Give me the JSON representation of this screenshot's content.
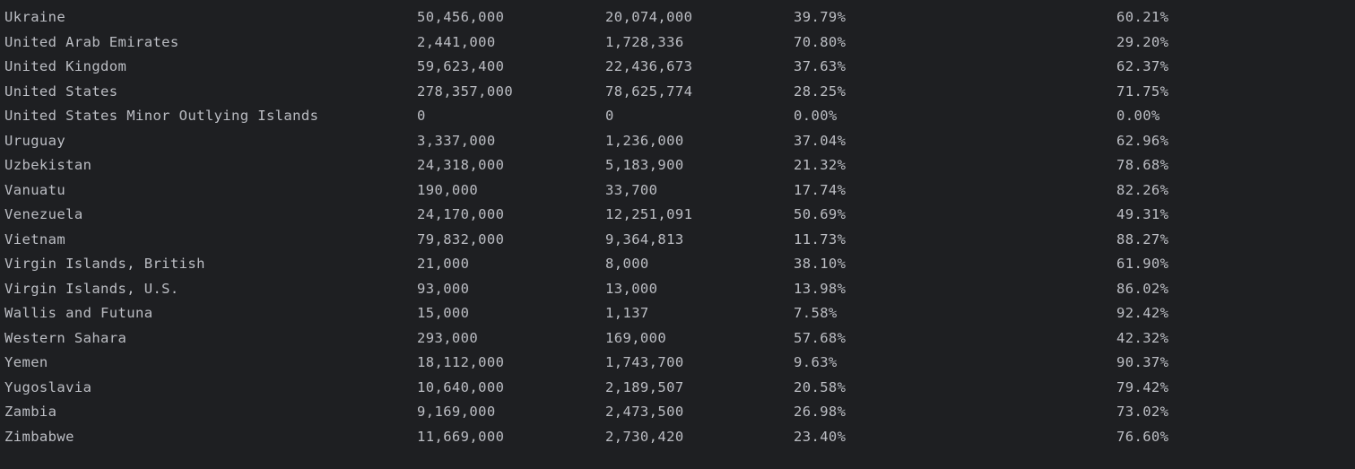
{
  "console": {
    "rows": [
      {
        "country": "Ukraine",
        "population": "50,456,000",
        "users": "20,074,000",
        "penetration": "39.79%",
        "remaining": "60.21%"
      },
      {
        "country": "United Arab Emirates",
        "population": "2,441,000",
        "users": "1,728,336",
        "penetration": "70.80%",
        "remaining": "29.20%"
      },
      {
        "country": "United Kingdom",
        "population": "59,623,400",
        "users": "22,436,673",
        "penetration": "37.63%",
        "remaining": "62.37%"
      },
      {
        "country": "United States",
        "population": "278,357,000",
        "users": "78,625,774",
        "penetration": "28.25%",
        "remaining": "71.75%"
      },
      {
        "country": "United States Minor Outlying Islands",
        "population": "0",
        "users": "0",
        "penetration": "0.00%",
        "remaining": "0.00%"
      },
      {
        "country": "Uruguay",
        "population": "3,337,000",
        "users": "1,236,000",
        "penetration": "37.04%",
        "remaining": "62.96%"
      },
      {
        "country": "Uzbekistan",
        "population": "24,318,000",
        "users": "5,183,900",
        "penetration": "21.32%",
        "remaining": "78.68%"
      },
      {
        "country": "Vanuatu",
        "population": "190,000",
        "users": "33,700",
        "penetration": "17.74%",
        "remaining": "82.26%"
      },
      {
        "country": "Venezuela",
        "population": "24,170,000",
        "users": "12,251,091",
        "penetration": "50.69%",
        "remaining": "49.31%"
      },
      {
        "country": "Vietnam",
        "population": "79,832,000",
        "users": "9,364,813",
        "penetration": "11.73%",
        "remaining": "88.27%"
      },
      {
        "country": "Virgin Islands, British",
        "population": "21,000",
        "users": "8,000",
        "penetration": "38.10%",
        "remaining": "61.90%"
      },
      {
        "country": "Virgin Islands, U.S.",
        "population": "93,000",
        "users": "13,000",
        "penetration": "13.98%",
        "remaining": "86.02%"
      },
      {
        "country": "Wallis and Futuna",
        "population": "15,000",
        "users": "1,137",
        "penetration": "7.58%",
        "remaining": "92.42%"
      },
      {
        "country": "Western Sahara",
        "population": "293,000",
        "users": "169,000",
        "penetration": "57.68%",
        "remaining": "42.32%"
      },
      {
        "country": "Yemen",
        "population": "18,112,000",
        "users": "1,743,700",
        "penetration": "9.63%",
        "remaining": "90.37%"
      },
      {
        "country": "Yugoslavia",
        "population": "10,640,000",
        "users": "2,189,507",
        "penetration": "20.58%",
        "remaining": "79.42%"
      },
      {
        "country": "Zambia",
        "population": "9,169,000",
        "users": "2,473,500",
        "penetration": "26.98%",
        "remaining": "73.02%"
      },
      {
        "country": "Zimbabwe",
        "population": "11,669,000",
        "users": "2,730,420",
        "penetration": "23.40%",
        "remaining": "76.60%"
      }
    ]
  }
}
